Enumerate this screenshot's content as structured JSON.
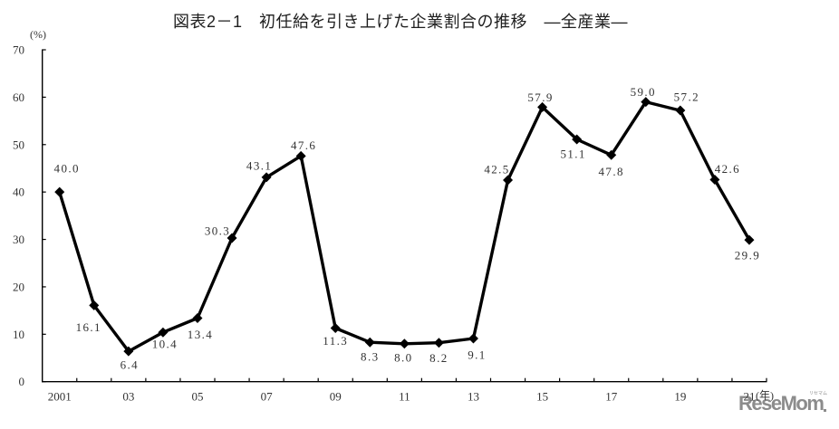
{
  "chart_data": {
    "type": "line",
    "title": "図表2－1　初任給を引き上げた企業割合の推移　―全産業―",
    "xlabel": "(年)",
    "ylabel": "(%)",
    "categories": [
      "2001",
      "2002",
      "2003",
      "2004",
      "2005",
      "2006",
      "2007",
      "2008",
      "2009",
      "2010",
      "2011",
      "2012",
      "2013",
      "2014",
      "2015",
      "2016",
      "2017",
      "2018",
      "2019",
      "2020",
      "2021"
    ],
    "x_tick_labels": [
      "2001",
      "03",
      "05",
      "07",
      "09",
      "11",
      "13",
      "15",
      "17",
      "19",
      "21"
    ],
    "values": [
      40.0,
      16.1,
      6.4,
      10.4,
      13.4,
      30.3,
      43.1,
      47.6,
      11.3,
      8.3,
      8.0,
      8.2,
      9.1,
      42.5,
      57.9,
      51.1,
      47.8,
      59.0,
      57.2,
      42.6,
      29.9
    ],
    "data_labels": [
      "40.0",
      "16.1",
      "6.4",
      "10.4",
      "13.4",
      "30.3",
      "43.1",
      "47.6",
      "11.3",
      "8.3",
      "8.0",
      "8.2",
      "9.1",
      "42.5",
      "57.9",
      "51.1",
      "47.8",
      "59.0",
      "57.2",
      "42.6",
      "29.9"
    ],
    "ylim": [
      0,
      70
    ],
    "yticks": [
      0,
      10,
      20,
      30,
      40,
      50,
      60,
      70
    ],
    "grid": false,
    "legend": null,
    "marker": "diamond",
    "line_color": "#000000",
    "text_color": "#333333"
  },
  "watermark": {
    "text": "ReseMom",
    "kana": "リセマム",
    "color": "#8c8c8c"
  }
}
